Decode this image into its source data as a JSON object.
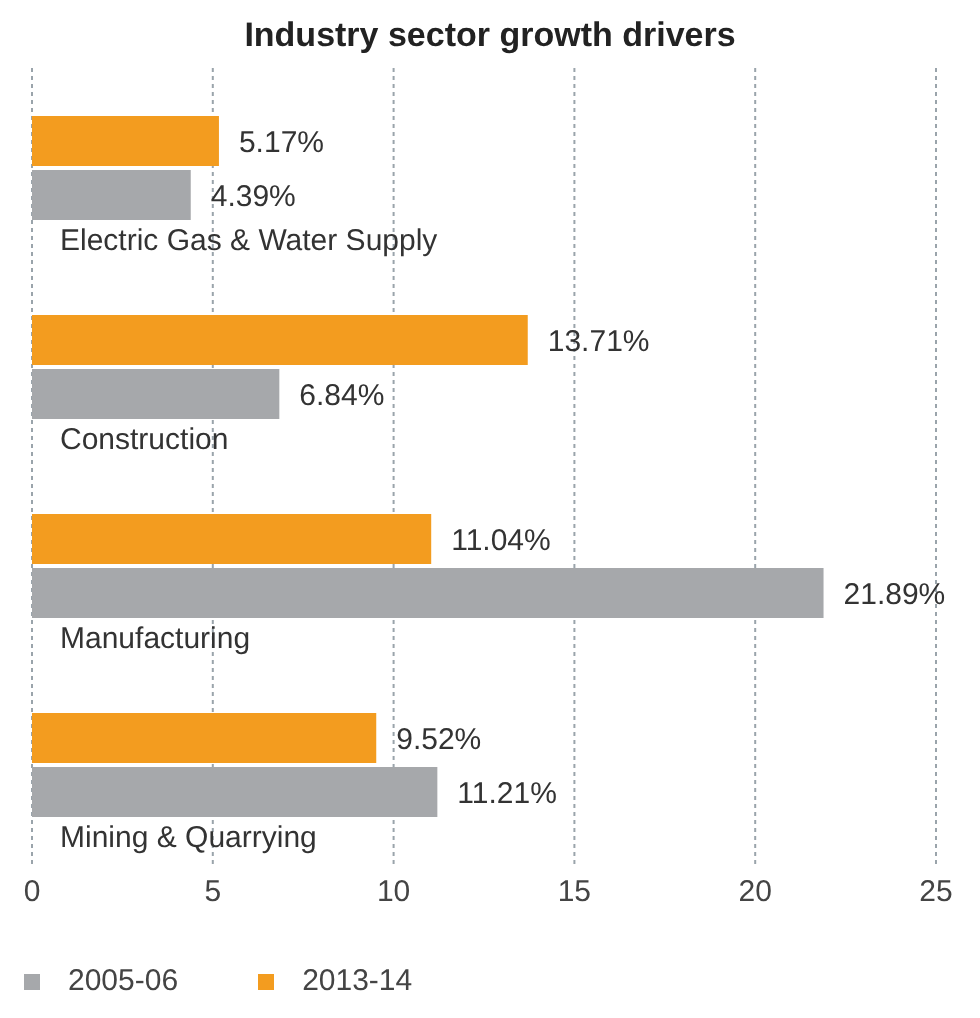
{
  "chart_data": {
    "type": "bar",
    "orientation": "horizontal",
    "title": "Industry sector growth drivers",
    "categories": [
      "Electric Gas & Water Supply",
      "Construction",
      "Manufacturing",
      "Mining & Quarrying"
    ],
    "series": [
      {
        "name": "2013-14",
        "color": "#f39c1f",
        "values": [
          5.17,
          13.71,
          11.04,
          9.52
        ],
        "value_labels": [
          "5.17%",
          "13.71%",
          "11.04%",
          "9.52%"
        ]
      },
      {
        "name": "2005-06",
        "color": "#a6a8ab",
        "values": [
          4.39,
          6.84,
          21.89,
          11.21
        ],
        "value_labels": [
          "4.39%",
          "6.84%",
          "21.89%",
          "11.21%"
        ]
      }
    ],
    "xlim": [
      0,
      25
    ],
    "xticks": [
      0,
      5,
      10,
      15,
      20,
      25
    ],
    "grid": "x",
    "legend": "bottom left"
  }
}
